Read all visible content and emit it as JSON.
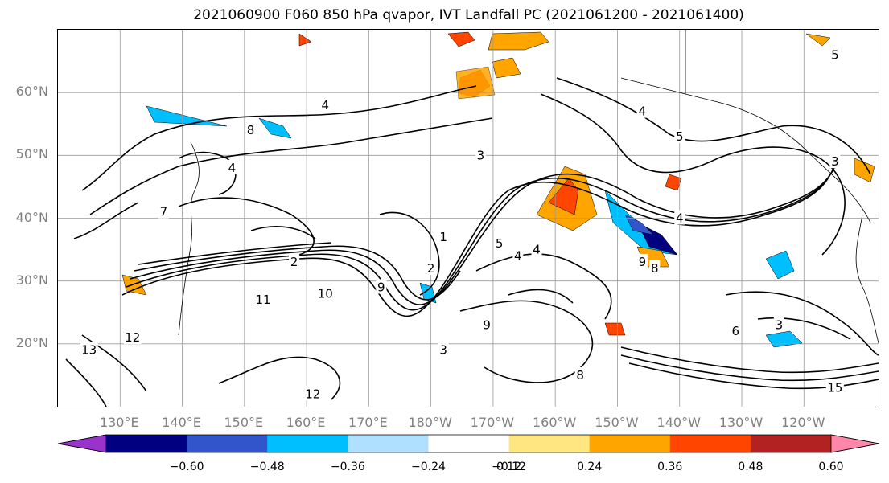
{
  "title": "2021060900 F060 850 hPa qvapor, IVT Landfall PC (2021061200 - 2021061400)",
  "map": {
    "lat_labels": [
      {
        "text": "60°N",
        "lat": 60
      },
      {
        "text": "50°N",
        "lat": 50
      },
      {
        "text": "40°N",
        "lat": 40
      },
      {
        "text": "30°N",
        "lat": 30
      },
      {
        "text": "20°N",
        "lat": 20
      }
    ],
    "lon_labels": [
      {
        "text": "130°E",
        "lon": 130
      },
      {
        "text": "140°E",
        "lon": 140
      },
      {
        "text": "150°E",
        "lon": 150
      },
      {
        "text": "160°E",
        "lon": 160
      },
      {
        "text": "170°E",
        "lon": 170
      },
      {
        "text": "180°W",
        "lon": 180
      },
      {
        "text": "170°W",
        "lon": 190
      },
      {
        "text": "160°W",
        "lon": 200
      },
      {
        "text": "150°W",
        "lon": 210
      },
      {
        "text": "140°W",
        "lon": 220
      },
      {
        "text": "130°W",
        "lon": 230
      },
      {
        "text": "120°W",
        "lon": 240
      }
    ],
    "extent": {
      "lon_min": 120,
      "lon_max": 252,
      "lat_min": 10,
      "lat_max": 70
    },
    "contour_labels": [
      {
        "text": "4",
        "lon": 163,
        "lat": 58
      },
      {
        "text": "4",
        "lon": 214,
        "lat": 57
      },
      {
        "text": "5",
        "lon": 220,
        "lat": 53
      },
      {
        "text": "5",
        "lon": 245,
        "lat": 66
      },
      {
        "text": "3",
        "lon": 188,
        "lat": 50
      },
      {
        "text": "3",
        "lon": 245,
        "lat": 49
      },
      {
        "text": "8",
        "lon": 151,
        "lat": 54
      },
      {
        "text": "4",
        "lon": 148,
        "lat": 48
      },
      {
        "text": "7",
        "lon": 137,
        "lat": 41
      },
      {
        "text": "2",
        "lon": 158,
        "lat": 33
      },
      {
        "text": "1",
        "lon": 182,
        "lat": 37
      },
      {
        "text": "5",
        "lon": 191,
        "lat": 36
      },
      {
        "text": "4",
        "lon": 194,
        "lat": 34
      },
      {
        "text": "4",
        "lon": 197,
        "lat": 35
      },
      {
        "text": "2",
        "lon": 180,
        "lat": 32
      },
      {
        "text": "4",
        "lon": 220,
        "lat": 40
      },
      {
        "text": "9",
        "lon": 214,
        "lat": 33
      },
      {
        "text": "8",
        "lon": 216,
        "lat": 32
      },
      {
        "text": "10",
        "lon": 163,
        "lat": 28
      },
      {
        "text": "9",
        "lon": 172,
        "lat": 29
      },
      {
        "text": "11",
        "lon": 153,
        "lat": 27
      },
      {
        "text": "12",
        "lon": 132,
        "lat": 21
      },
      {
        "text": "13",
        "lon": 125,
        "lat": 19
      },
      {
        "text": "9",
        "lon": 189,
        "lat": 23
      },
      {
        "text": "6",
        "lon": 229,
        "lat": 22
      },
      {
        "text": "3",
        "lon": 236,
        "lat": 23
      },
      {
        "text": "8",
        "lon": 204,
        "lat": 15
      },
      {
        "text": "12",
        "lon": 161,
        "lat": 12
      },
      {
        "text": "15",
        "lon": 245,
        "lat": 13
      },
      {
        "text": "3",
        "lon": 182,
        "lat": 19
      }
    ]
  },
  "colorbar": {
    "colors": [
      "#9933cc",
      "#000080",
      "#3355cc",
      "#00bfff",
      "#b0e0ff",
      "#ffffff",
      "#ffe680",
      "#ffa500",
      "#ff4500",
      "#b22222",
      "#ff88aa"
    ],
    "tick_labels": [
      "−0.60",
      "−0.48",
      "−0.36",
      "−0.24",
      "−0.12",
      "0.12",
      "0.24",
      "0.36",
      "0.48",
      "0.60"
    ]
  }
}
